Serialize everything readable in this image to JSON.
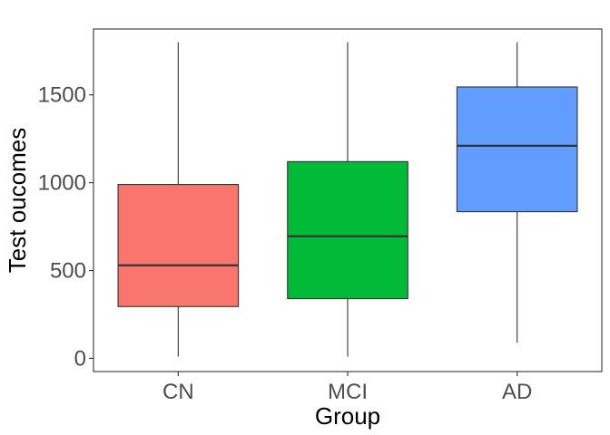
{
  "chart_data": {
    "type": "boxplot",
    "title": "",
    "xlabel": "Group",
    "ylabel": "Test oucomes",
    "ylim": [
      -75,
      1875
    ],
    "yticks": [
      0,
      500,
      1000,
      1500
    ],
    "ytick_labels": [
      "0",
      "500",
      "1000",
      "1500"
    ],
    "categories": [
      "CN",
      "MCI",
      "AD"
    ],
    "boxes": [
      {
        "category": "CN",
        "min": 10,
        "q1": 295,
        "median": 530,
        "q3": 990,
        "max": 1800,
        "color": "#F8766D"
      },
      {
        "category": "MCI",
        "min": 10,
        "q1": 340,
        "median": 695,
        "q3": 1120,
        "max": 1800,
        "color": "#00BA38"
      },
      {
        "category": "AD",
        "min": 90,
        "q1": 835,
        "median": 1210,
        "q3": 1545,
        "max": 1800,
        "color": "#619CFF"
      }
    ],
    "grid": false,
    "legend": "none"
  }
}
